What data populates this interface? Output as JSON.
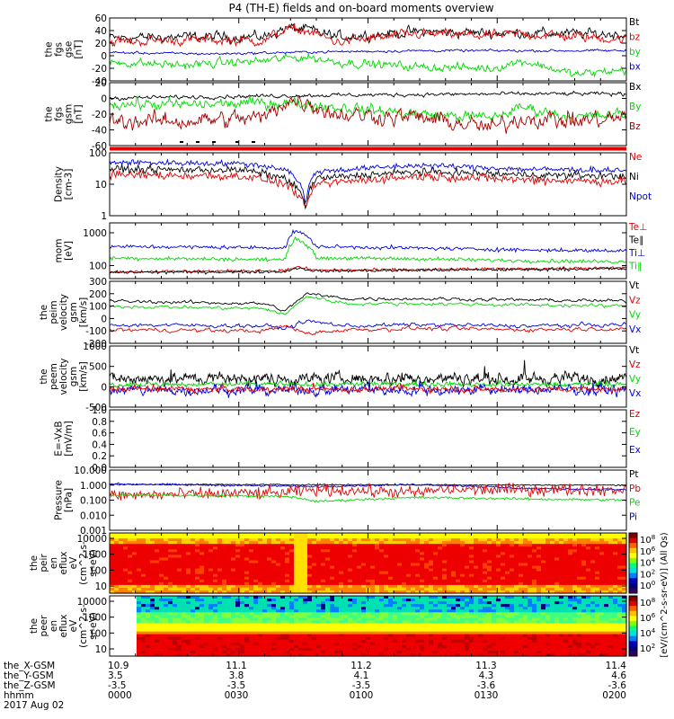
{
  "title": "P4 (TH-E) fields and on-board moments overview",
  "colors": {
    "black": "#000000",
    "red": "#e00000",
    "green": "#00d800",
    "blue": "#0000e0",
    "darkred": "#a00000"
  },
  "chart_data": [
    {
      "type": "line",
      "ylabel": [
        "the",
        "fgs",
        "gse",
        "[nT]"
      ],
      "ylim": [
        -40,
        60
      ],
      "yticks": [
        "60",
        "40",
        "20",
        "0",
        "-20",
        "-40"
      ],
      "legend": [
        {
          "name": "Bt",
          "color": "black"
        },
        {
          "name": "bz",
          "color": "red"
        },
        {
          "name": "by",
          "color": "green"
        },
        {
          "name": "bx",
          "color": "blue"
        }
      ],
      "series": [
        {
          "name": "Bt",
          "color": "black",
          "base": 34,
          "noise": 6,
          "x": [
            10.9,
            10.97,
            11.05,
            11.07,
            11.09,
            11.12,
            11.2,
            11.27,
            11.3,
            11.4
          ],
          "y": [
            28,
            30,
            30,
            44,
            42,
            30,
            38,
            36,
            36,
            34
          ]
        },
        {
          "name": "bz",
          "color": "red",
          "base": 30,
          "noise": 6,
          "x": [
            10.9,
            10.97,
            11.05,
            11.07,
            11.09,
            11.12,
            11.2,
            11.27,
            11.3,
            11.4
          ],
          "y": [
            22,
            25,
            24,
            42,
            40,
            22,
            35,
            32,
            35,
            26
          ]
        },
        {
          "name": "by",
          "color": "green",
          "base": -10,
          "noise": 5,
          "x": [
            10.9,
            10.97,
            11.05,
            11.07,
            11.09,
            11.12,
            11.2,
            11.27,
            11.3,
            11.35,
            11.4
          ],
          "y": [
            -10,
            -15,
            -8,
            -4,
            -2,
            -10,
            -18,
            -20,
            -8,
            -30,
            -22
          ]
        },
        {
          "name": "bx",
          "color": "blue",
          "base": 5,
          "noise": 1.5,
          "x": [
            10.9,
            11.0,
            11.1,
            11.2,
            11.3,
            11.4
          ],
          "y": [
            5,
            3,
            6,
            8,
            8,
            8
          ]
        }
      ]
    },
    {
      "type": "line",
      "ylabel": [
        "the",
        "fgs",
        "gsm",
        "[nT]"
      ],
      "ylim": [
        -70,
        20
      ],
      "yticks": [
        "20",
        "0",
        "-20",
        "-40",
        "-60"
      ],
      "legend": [
        {
          "name": "Bx",
          "color": "black"
        },
        {
          "name": "By",
          "color": "green"
        },
        {
          "name": "Bz",
          "color": "darkred"
        }
      ],
      "series": [
        {
          "name": "Bx",
          "color": "black",
          "base": 2,
          "noise": 2,
          "x": [
            10.9,
            11.0,
            11.1,
            11.2,
            11.3,
            11.4
          ],
          "y": [
            -2,
            0,
            2,
            3,
            4,
            4
          ]
        },
        {
          "name": "By",
          "color": "green",
          "base": -10,
          "noise": 6,
          "x": [
            10.9,
            10.97,
            11.07,
            11.12,
            11.2,
            11.27,
            11.3,
            11.35,
            11.4
          ],
          "y": [
            -10,
            -12,
            -8,
            -15,
            -25,
            -30,
            -15,
            -30,
            -25
          ]
        },
        {
          "name": "Bz",
          "color": "darkred",
          "base": -30,
          "noise": 9,
          "x": [
            10.9,
            10.97,
            11.05,
            11.07,
            11.09,
            11.12,
            11.2,
            11.27,
            11.3,
            11.35,
            11.4
          ],
          "y": [
            -35,
            -35,
            -30,
            -6,
            -8,
            -25,
            -30,
            -45,
            -30,
            -35,
            -30
          ]
        }
      ]
    },
    {
      "type": "line",
      "ylabel": [
        "Density",
        "[cm-3]"
      ],
      "log": true,
      "ylim": [
        1,
        100
      ],
      "yticks": [
        "100",
        "10",
        "1"
      ],
      "legend": [
        {
          "name": "Ne",
          "color": "red"
        },
        {
          "name": "Ni",
          "color": "black"
        },
        {
          "name": "Npot",
          "color": "blue"
        }
      ],
      "series": [
        {
          "name": "Npot",
          "color": "blue",
          "base": 50,
          "noise": 0.08,
          "x": [
            10.9,
            11.03,
            11.07,
            11.09,
            11.1,
            11.2,
            11.3,
            11.4
          ],
          "y": [
            50,
            45,
            30,
            1.8,
            25,
            40,
            30,
            28
          ]
        },
        {
          "name": "Ni",
          "color": "black",
          "base": 30,
          "noise": 0.1,
          "x": [
            10.9,
            11.03,
            11.07,
            11.09,
            11.1,
            11.2,
            11.3,
            11.4
          ],
          "y": [
            30,
            28,
            15,
            1.5,
            15,
            25,
            20,
            18
          ]
        },
        {
          "name": "Ne",
          "color": "red",
          "base": 20,
          "noise": 0.12,
          "x": [
            10.9,
            11.03,
            11.07,
            11.09,
            11.1,
            11.2,
            11.3,
            11.4
          ],
          "y": [
            20,
            18,
            10,
            1.2,
            10,
            18,
            14,
            12
          ]
        }
      ]
    },
    {
      "type": "line",
      "ylabel": [
        "mom",
        "[eV]"
      ],
      "log": true,
      "ylim": [
        40,
        2000
      ],
      "yticks": [
        "1000",
        "100"
      ],
      "legend": [
        {
          "name": "Te⊥",
          "color": "red"
        },
        {
          "name": "Te∥",
          "color": "black"
        },
        {
          "name": "Ti⊥",
          "color": "blue"
        },
        {
          "name": "Ti∥",
          "color": "green"
        }
      ],
      "series": [
        {
          "name": "Ti⊥",
          "color": "blue",
          "base": 350,
          "noise": 0.05,
          "x": [
            10.9,
            11.07,
            11.08,
            11.1,
            11.2,
            11.3,
            11.4
          ],
          "y": [
            380,
            350,
            1200,
            380,
            340,
            300,
            280
          ]
        },
        {
          "name": "Ti∥",
          "color": "green",
          "base": 180,
          "noise": 0.05,
          "x": [
            10.9,
            11.07,
            11.08,
            11.1,
            11.2,
            11.3,
            11.4
          ],
          "y": [
            170,
            150,
            700,
            170,
            160,
            140,
            130
          ]
        },
        {
          "name": "Te⊥",
          "color": "red",
          "base": 75,
          "noise": 0.04,
          "x": [
            10.9,
            11.07,
            11.08,
            11.1,
            11.2,
            11.3,
            11.4
          ],
          "y": [
            65,
            70,
            90,
            72,
            75,
            80,
            85
          ]
        },
        {
          "name": "Te∥",
          "color": "black",
          "base": 70,
          "noise": 0.04,
          "x": [
            10.9,
            11.07,
            11.08,
            11.1,
            11.2,
            11.3,
            11.4
          ],
          "y": [
            62,
            65,
            85,
            68,
            72,
            76,
            80
          ]
        }
      ]
    },
    {
      "type": "line",
      "ylabel": [
        "the",
        "peim",
        "velocity",
        "gsm",
        "[km/s]"
      ],
      "ylim": [
        -200,
        300
      ],
      "yticks": [
        "300",
        "200",
        "100",
        "0",
        "-100",
        "-200"
      ],
      "legend": [
        {
          "name": "Vt",
          "color": "black"
        },
        {
          "name": "Vz",
          "color": "red"
        },
        {
          "name": "Vy",
          "color": "green"
        },
        {
          "name": "Vx",
          "color": "blue"
        }
      ],
      "series": [
        {
          "name": "Vt",
          "color": "black",
          "base": 150,
          "noise": 10,
          "x": [
            10.9,
            11.05,
            11.07,
            11.09,
            11.13,
            11.2,
            11.3,
            11.4
          ],
          "y": [
            140,
            120,
            60,
            200,
            160,
            160,
            150,
            140
          ]
        },
        {
          "name": "Vy",
          "color": "green",
          "base": 110,
          "noise": 10,
          "x": [
            10.9,
            11.05,
            11.07,
            11.09,
            11.13,
            11.2,
            11.3,
            11.4
          ],
          "y": [
            100,
            80,
            30,
            180,
            120,
            120,
            110,
            100
          ]
        },
        {
          "name": "Vx",
          "color": "blue",
          "base": -50,
          "noise": 12,
          "x": [
            10.9,
            11.05,
            11.07,
            11.09,
            11.13,
            11.2,
            11.3,
            11.4
          ],
          "y": [
            -50,
            -60,
            -80,
            -20,
            -60,
            -50,
            -60,
            -50
          ]
        },
        {
          "name": "Vz",
          "color": "red",
          "base": -90,
          "noise": 12,
          "x": [
            10.9,
            11.05,
            11.07,
            11.09,
            11.13,
            11.2,
            11.3,
            11.4
          ],
          "y": [
            -90,
            -100,
            -60,
            -120,
            -90,
            -80,
            -90,
            -80
          ]
        }
      ]
    },
    {
      "type": "line",
      "ylabel": [
        "the",
        "peem",
        "velocity",
        "gsm",
        "[km/s]"
      ],
      "ylim": [
        -500,
        1000
      ],
      "yticks": [
        "1000",
        "500",
        "0",
        "-500"
      ],
      "legend": [
        {
          "name": "Vt",
          "color": "black"
        },
        {
          "name": "Vz",
          "color": "red"
        },
        {
          "name": "Vy",
          "color": "green"
        },
        {
          "name": "Vx",
          "color": "blue"
        }
      ],
      "series": [
        {
          "name": "Vt",
          "color": "black",
          "base": 200,
          "noise": 110,
          "x": [
            10.9,
            11.4
          ],
          "y": [
            200,
            200
          ]
        },
        {
          "name": "Vy",
          "color": "green",
          "base": 60,
          "noise": 40,
          "x": [
            10.9,
            11.4
          ],
          "y": [
            60,
            60
          ]
        },
        {
          "name": "Vx",
          "color": "blue",
          "base": -80,
          "noise": 90,
          "x": [
            10.9,
            11.4
          ],
          "y": [
            -80,
            -80
          ]
        },
        {
          "name": "Vz",
          "color": "red",
          "base": -60,
          "noise": 50,
          "x": [
            10.9,
            11.4
          ],
          "y": [
            -60,
            -60
          ]
        }
      ]
    },
    {
      "type": "line",
      "ylabel": [
        "E=-VxB",
        "[mV/m]"
      ],
      "ylim": [
        0,
        1
      ],
      "yticks": [
        "1.0",
        "0.8",
        "0.6",
        "0.4",
        "0.2",
        "0.0"
      ],
      "legend": [
        {
          "name": "Ez",
          "color": "red"
        },
        {
          "name": "Ey",
          "color": "green"
        },
        {
          "name": "Ex",
          "color": "blue"
        }
      ],
      "series": []
    },
    {
      "type": "line",
      "ylabel": [
        "Pressure",
        "[nPa]"
      ],
      "log": true,
      "ylim": [
        0.001,
        10
      ],
      "yticks": [
        "10.000",
        "1.000",
        "0.100",
        "0.010",
        "0.001"
      ],
      "legend": [
        {
          "name": "Pt",
          "color": "black"
        },
        {
          "name": "Pb",
          "color": "red"
        },
        {
          "name": "Pe",
          "color": "green"
        },
        {
          "name": "Pi",
          "color": "blue"
        }
      ],
      "series": [
        {
          "name": "Pt",
          "color": "black",
          "base": 1.2,
          "noise": 0.04,
          "x": [
            10.9,
            11.4
          ],
          "y": [
            1.1,
            1.0
          ]
        },
        {
          "name": "Pi",
          "color": "blue",
          "base": 1.0,
          "noise": 0.06,
          "x": [
            10.9,
            11.05,
            11.1,
            11.2,
            11.3,
            11.4
          ],
          "y": [
            1.2,
            0.9,
            0.8,
            1.1,
            0.6,
            0.5
          ]
        },
        {
          "name": "Pb",
          "color": "red",
          "base": 0.25,
          "noise": 0.35,
          "x": [
            10.9,
            11.07,
            11.1,
            11.2,
            11.22,
            11.4
          ],
          "y": [
            0.2,
            0.3,
            0.5,
            0.3,
            0.5,
            0.5
          ]
        },
        {
          "name": "Pe",
          "color": "green",
          "base": 0.2,
          "noise": 0.07,
          "x": [
            10.9,
            11.07,
            11.1,
            11.2,
            11.3,
            11.4
          ],
          "y": [
            0.22,
            0.18,
            0.08,
            0.15,
            0.12,
            0.1
          ]
        }
      ]
    },
    {
      "type": "heatmap",
      "ylabel": [
        "the",
        "peir",
        "en",
        "eflux",
        "eV",
        "(cm^2-s-",
        "sr-eV)"
      ],
      "yticks": [
        "10000",
        "1000",
        "100",
        "10"
      ]
    },
    {
      "type": "heatmap",
      "ylabel": [
        "the",
        "peer",
        "en",
        "eflux",
        "eV",
        "(cm^2-s-",
        "sr-eV)"
      ],
      "yticks": [
        "10000",
        "1000",
        "100",
        "10"
      ]
    }
  ],
  "colorbar": {
    "label": "[eV/(cm^2-s-sr-eV)] (All Qs)",
    "ion_ticks": [
      "10^8",
      "10^6",
      "10^4",
      "10^2",
      "10^0"
    ],
    "ele_ticks": [
      "10^8",
      "10^6",
      "10^4",
      "10^2"
    ]
  },
  "xaxis": {
    "row_labels": [
      "the_X-GSM",
      "the_Y-GSM",
      "the_Z-GSM",
      "hhmm",
      "2017 Aug 02"
    ],
    "ticks": [
      [
        "10.9",
        "11.1",
        "11.2",
        "11.3",
        "11.4"
      ],
      [
        "3.5",
        "3.8",
        "4.1",
        "4.3",
        "4.6"
      ],
      [
        "-3.5",
        "-3.5",
        "-3.5",
        "-3.6",
        "-3.6"
      ],
      [
        "0000",
        "0030",
        "0100",
        "0130",
        "0200"
      ]
    ]
  }
}
